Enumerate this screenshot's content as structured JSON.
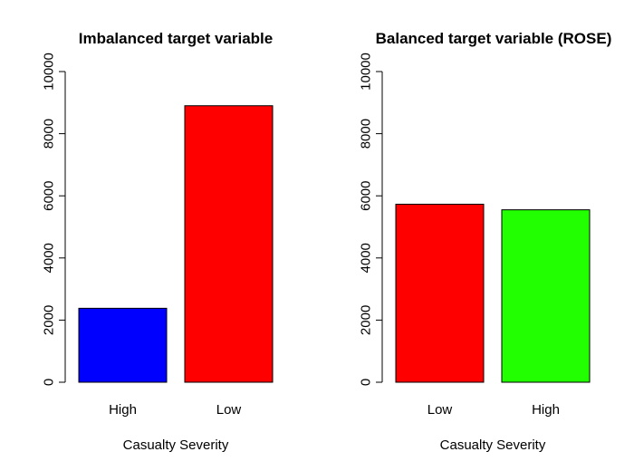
{
  "chart_data": [
    {
      "type": "bar",
      "title": "Imbalanced target variable",
      "xlabel": "Casualty Severity",
      "ylabel": "",
      "ylim": [
        0,
        10000
      ],
      "yticks": [
        0,
        2000,
        4000,
        6000,
        8000,
        10000
      ],
      "categories": [
        "High",
        "Low"
      ],
      "values": [
        2380,
        8900
      ],
      "colors": [
        "#0000ff",
        "#ff0000"
      ],
      "grid": false
    },
    {
      "type": "bar",
      "title": "Balanced target variable (ROSE)",
      "xlabel": "Casualty Severity",
      "ylabel": "",
      "ylim": [
        0,
        10000
      ],
      "yticks": [
        0,
        2000,
        4000,
        6000,
        8000,
        10000
      ],
      "categories": [
        "Low",
        "High"
      ],
      "values": [
        5730,
        5550
      ],
      "colors": [
        "#ff0000",
        "#22ff00"
      ],
      "grid": false
    }
  ]
}
